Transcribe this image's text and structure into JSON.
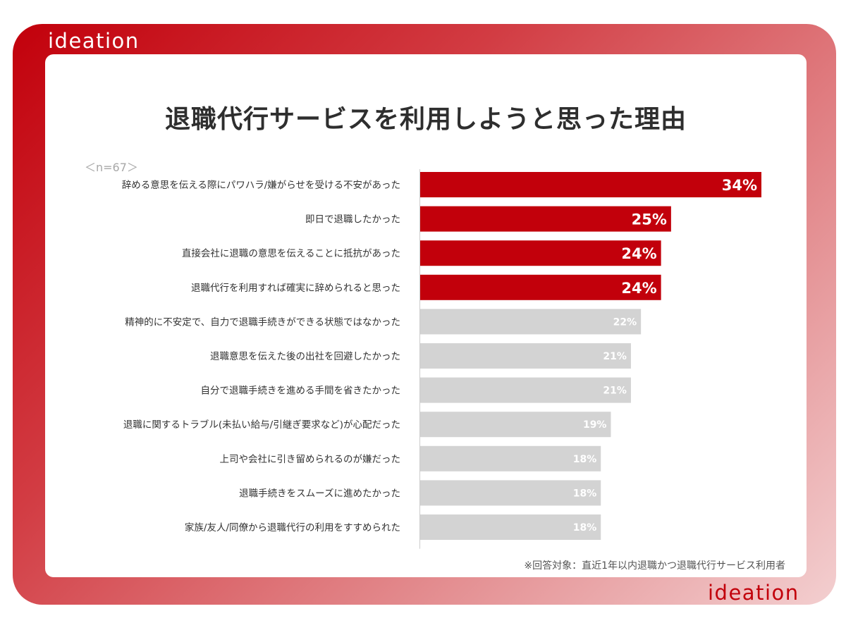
{
  "brand": {
    "logo_text": "ideation"
  },
  "colors": {
    "highlight": "#c2000b",
    "neutral": "#d3d3d3",
    "label": "#333333"
  },
  "chart_data": {
    "type": "bar",
    "orientation": "horizontal",
    "title": "退職代行サービスを利用しようと思った理由",
    "sample_note": "＜n=67＞",
    "footnote": "※回答対象：直近1年以内退職かつ退職代行サービス利用者",
    "categories": [
      "辞める意思を伝える際にパワハラ/嫌がらせを受ける不安があった",
      "即日で退職したかった",
      "直接会社に退職の意思を伝えることに抵抗があった",
      "退職代行を利用すれば確実に辞められると思った",
      "精神的に不安定で、自力で退職手続きができる状態ではなかった",
      "退職意思を伝えた後の出社を回避したかった",
      "自分で退職手続きを進める手間を省きたかった",
      "退職に関するトラブル(未払い給与/引継ぎ要求など)が心配だった",
      "上司や会社に引き留められるのが嫌だった",
      "退職手続きをスムーズに進めたかった",
      "家族/友人/同僚から退職代行の利用をすすめられた"
    ],
    "values": [
      34,
      25,
      24,
      24,
      22,
      21,
      21,
      19,
      18,
      18,
      18
    ],
    "value_labels": [
      "34%",
      "25%",
      "24%",
      "24%",
      "22%",
      "21%",
      "21%",
      "19%",
      "18%",
      "18%",
      "18%"
    ],
    "highlight_count": 4,
    "xlim": [
      0,
      34
    ]
  }
}
